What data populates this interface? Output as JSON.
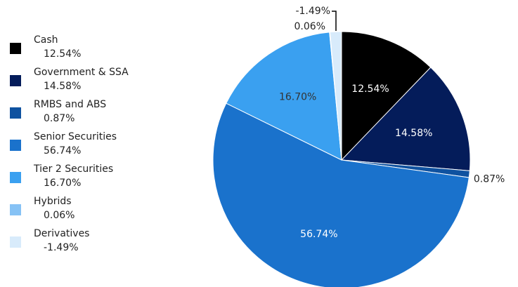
{
  "chart_data": {
    "type": "pie",
    "slices": [
      {
        "label": "Cash",
        "value": 12.54,
        "value_label": "12.54%",
        "color": "#000000",
        "text_color": "#ffffff",
        "label_position": "inside"
      },
      {
        "label": "Government & SSA",
        "value": 14.58,
        "value_label": "14.58%",
        "color": "#041c5a",
        "text_color": "#ffffff",
        "label_position": "inside"
      },
      {
        "label": "RMBS and ABS",
        "value": 0.87,
        "value_label": "0.87%",
        "color": "#0f52a0",
        "text_color": "#222222",
        "label_position": "outside"
      },
      {
        "label": "Senior Securities",
        "value": 56.74,
        "value_label": "56.74%",
        "color": "#1a72cc",
        "text_color": "#ffffff",
        "label_position": "inside"
      },
      {
        "label": "Tier 2 Securities",
        "value": 16.7,
        "value_label": "16.70%",
        "color": "#3aa0f0",
        "text_color": "#333333",
        "label_position": "inside"
      },
      {
        "label": "Hybrids",
        "value": 0.06,
        "value_label": "0.06%",
        "color": "#86c2f5",
        "text_color": "#222222",
        "label_position": "outside"
      },
      {
        "label": "Derivatives",
        "value": -1.49,
        "value_label": "-1.49%",
        "color": "#d8ebfb",
        "text_color": "#222222",
        "label_position": "outside"
      }
    ],
    "legend_position": "left"
  }
}
